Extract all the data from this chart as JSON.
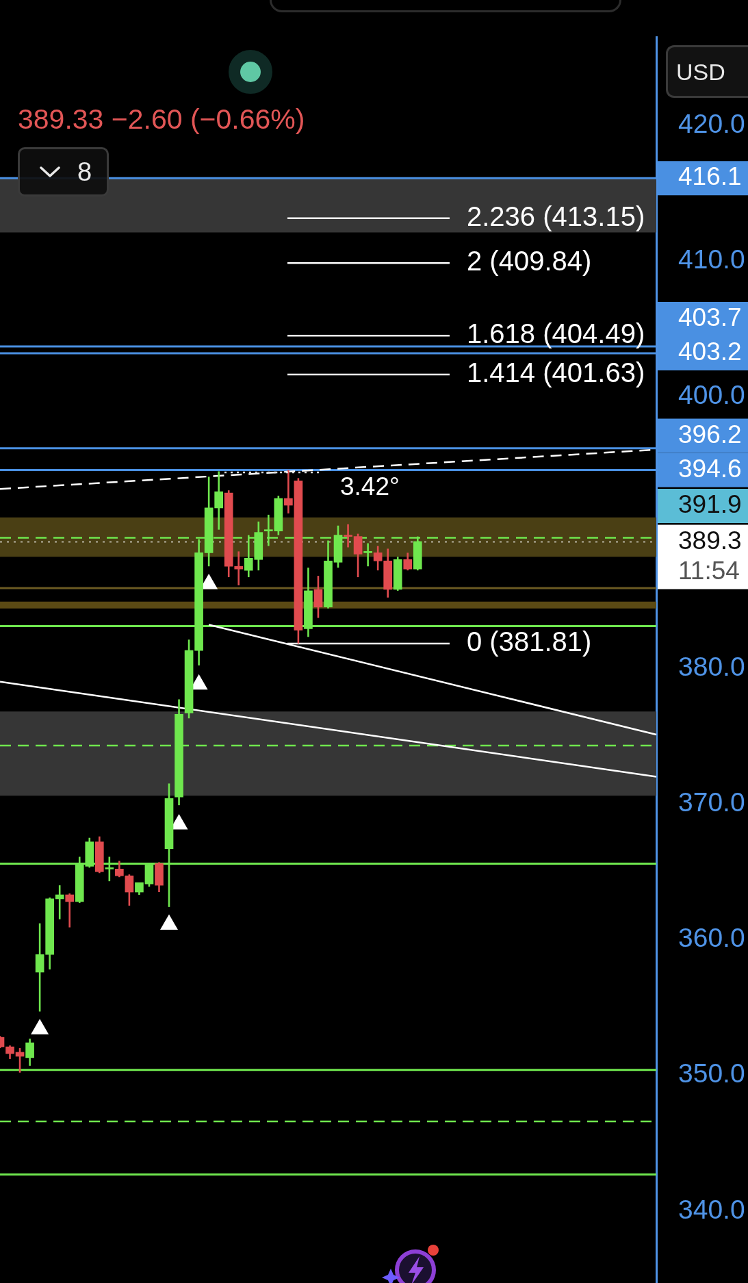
{
  "chart_data": {
    "type": "candlestick",
    "subtitle": "389.33 −2.60 (−0.66%)",
    "categories": [
      null,
      null,
      null,
      null,
      null,
      null,
      null,
      null,
      null,
      null,
      null,
      null,
      null,
      null,
      null,
      null,
      null,
      null,
      null,
      null,
      null,
      null,
      null,
      null,
      null,
      null,
      null,
      null,
      null,
      null,
      null,
      null,
      null,
      null,
      null,
      null,
      null,
      null,
      null,
      null,
      null,
      null,
      null,
      null,
      null,
      null,
      null,
      null,
      null,
      null,
      null,
      null,
      null,
      null,
      null,
      null,
      null,
      null,
      null,
      null,
      null,
      null,
      null,
      null,
      null,
      null,
      null
    ],
    "ohlc": [
      [
        352.8,
        352.9,
        352.0,
        352.1
      ],
      [
        352.1,
        352.2,
        351.2,
        351.6
      ],
      [
        351.7,
        352.0,
        350.2,
        351.4
      ],
      [
        351.3,
        352.7,
        350.7,
        352.4
      ],
      [
        357.6,
        361.2,
        354.7,
        358.9
      ],
      [
        358.9,
        363.1,
        357.8,
        363.0
      ],
      [
        363.0,
        364.0,
        361.5,
        363.3
      ],
      [
        363.3,
        363.4,
        360.9,
        362.8
      ],
      [
        362.8,
        366.1,
        362.7,
        365.6
      ],
      [
        365.4,
        367.5,
        365.3,
        367.2
      ],
      [
        367.2,
        367.6,
        364.9,
        365.0
      ],
      [
        365.2,
        366.1,
        364.3,
        365.3
      ],
      [
        365.2,
        365.8,
        364.6,
        364.7
      ],
      [
        364.7,
        364.8,
        362.5,
        363.5
      ],
      [
        363.5,
        364.2,
        363.3,
        364.2
      ],
      [
        364.1,
        365.6,
        363.9,
        365.5
      ],
      [
        365.6,
        365.7,
        363.5,
        364.0
      ],
      [
        366.7,
        371.5,
        362.4,
        370.4
      ],
      [
        370.5,
        377.7,
        369.9,
        376.6
      ],
      [
        376.7,
        382.1,
        376.3,
        381.3
      ],
      [
        381.3,
        389.5,
        380.2,
        388.5
      ],
      [
        388.5,
        394.1,
        387.5,
        391.8
      ],
      [
        391.8,
        394.5,
        390.2,
        393.0
      ],
      [
        392.9,
        393.1,
        386.7,
        387.5
      ],
      [
        387.5,
        388.6,
        386.1,
        387.3
      ],
      [
        387.2,
        389.8,
        386.7,
        388.1
      ],
      [
        388.0,
        390.8,
        387.2,
        390.0
      ],
      [
        390.1,
        391.3,
        389.0,
        390.2
      ],
      [
        390.1,
        392.7,
        389.8,
        392.5
      ],
      [
        392.5,
        394.6,
        391.4,
        392.0
      ],
      [
        393.8,
        394.0,
        381.81,
        382.8
      ],
      [
        382.9,
        387.4,
        382.3,
        385.7
      ],
      [
        385.8,
        386.8,
        383.7,
        384.5
      ],
      [
        384.5,
        389.4,
        384.4,
        387.9
      ],
      [
        387.8,
        390.5,
        387.4,
        389.8
      ],
      [
        389.8,
        390.6,
        388.9,
        389.7
      ],
      [
        389.7,
        389.9,
        386.7,
        388.4
      ],
      [
        388.5,
        389.2,
        387.5,
        388.6
      ],
      [
        388.5,
        389.0,
        387.2,
        387.9
      ],
      [
        387.9,
        388.8,
        385.2,
        385.8
      ],
      [
        385.8,
        388.2,
        385.7,
        388.0
      ],
      [
        388.0,
        388.5,
        387.2,
        387.3
      ],
      [
        387.3,
        389.7,
        387.2,
        389.33
      ],
      null,
      null,
      null,
      null,
      null,
      null,
      null,
      null,
      null,
      null,
      null,
      null,
      null,
      null,
      null,
      null,
      null,
      null,
      null,
      null,
      null,
      null,
      null,
      null
    ],
    "colors": [
      "#e14b4f",
      "#e14b4f",
      "#e14b4f",
      "#6fe74e",
      "#6fe74e",
      "#6fe74e",
      "#6fe74e",
      "#e14b4f",
      "#6fe74e",
      "#6fe74e",
      "#e14b4f",
      "#6fe74e",
      "#e14b4f",
      "#e14b4f",
      "#6fe74e",
      "#6fe74e",
      "#e14b4f",
      "#6fe74e",
      "#6fe74e",
      "#6fe74e",
      "#6fe74e",
      "#6fe74e",
      "#6fe74e",
      "#e14b4f",
      "#e14b4f",
      "#6fe74e",
      "#6fe74e",
      "#6fe74e",
      "#6fe74e",
      "#e14b4f",
      "#e14b4f",
      "#6fe74e",
      "#e14b4f",
      "#6fe74e",
      "#6fe74e",
      "#e14b4f",
      "#e14b4f",
      "#6fe74e",
      "#e14b4f",
      "#e14b4f",
      "#6fe74e",
      "#e14b4f",
      "#6fe74e",
      null,
      null,
      null,
      null,
      null,
      null,
      null,
      null,
      null,
      null,
      null,
      null,
      null,
      null,
      null,
      null,
      null,
      null,
      null,
      null,
      null,
      null,
      null,
      null
    ],
    "series": [
      {
        "type": "line",
        "line_style": "dashed",
        "color": "#ffffff",
        "values": [
          393.2,
          null,
          null,
          null,
          null,
          null,
          null,
          null,
          null,
          null,
          null,
          null,
          null,
          null,
          null,
          null,
          null,
          null,
          null,
          null,
          null,
          null,
          null,
          null,
          null,
          null,
          null,
          null,
          null,
          null,
          null,
          null,
          null,
          null,
          null,
          null,
          null,
          null,
          null,
          null,
          null,
          null,
          null,
          null,
          null,
          null,
          null,
          null,
          null,
          null,
          null,
          null,
          null,
          null,
          null,
          null,
          null,
          null,
          null,
          null,
          null,
          null,
          null,
          null,
          null,
          null,
          396.1
        ]
      },
      {
        "type": "line",
        "color": "#ffffff",
        "values": [
          379.0,
          null,
          null,
          null,
          null,
          null,
          null,
          null,
          null,
          null,
          null,
          null,
          null,
          null,
          null,
          null,
          null,
          null,
          null,
          null,
          null,
          null,
          null,
          null,
          null,
          null,
          null,
          null,
          null,
          null,
          null,
          null,
          null,
          null,
          null,
          null,
          null,
          null,
          null,
          null,
          null,
          null,
          null,
          null,
          null,
          null,
          null,
          null,
          null,
          null,
          null,
          null,
          null,
          null,
          null,
          null,
          null,
          null,
          null,
          null,
          null,
          null,
          null,
          null,
          null,
          null,
          372.0
        ]
      },
      {
        "type": "line",
        "color": "#ffffff",
        "values": [
          null,
          null,
          null,
          null,
          null,
          null,
          null,
          null,
          null,
          null,
          null,
          null,
          null,
          null,
          null,
          null,
          null,
          null,
          null,
          null,
          null,
          383.2,
          null,
          null,
          null,
          null,
          null,
          null,
          null,
          null,
          null,
          null,
          null,
          null,
          null,
          null,
          null,
          null,
          null,
          null,
          null,
          null,
          null,
          null,
          null,
          null,
          null,
          null,
          null,
          null,
          null,
          null,
          null,
          null,
          null,
          null,
          null,
          null,
          null,
          null,
          null,
          null,
          null,
          null,
          null,
          null,
          375.1
        ]
      },
      {
        "type": "scatter",
        "marker": "triangle",
        "color": "#ffffff",
        "values": [
          null,
          null,
          null,
          null,
          353.4,
          null,
          null,
          null,
          null,
          null,
          null,
          null,
          null,
          null,
          null,
          null,
          null,
          361.1,
          368.5,
          null,
          378.8,
          386.2,
          null,
          null,
          null,
          null,
          null,
          null,
          null,
          null,
          null,
          null,
          null,
          null,
          null,
          null,
          null,
          null,
          null,
          null,
          null,
          null,
          null,
          null,
          null,
          null,
          null,
          null,
          null,
          null,
          null,
          null,
          null,
          null,
          null,
          null,
          null,
          null,
          null,
          null,
          null,
          null,
          null,
          null,
          null,
          null,
          null
        ]
      }
    ],
    "ylim": [
      334.7,
      426.5
    ],
    "yticks": [
      {
        "value": 340,
        "label": "340.0"
      },
      {
        "value": 350,
        "label": "350.0"
      },
      {
        "value": 360,
        "label": "360.0"
      },
      {
        "value": 370,
        "label": "370.0"
      },
      {
        "value": 380,
        "label": "380.0"
      },
      {
        "value": 400,
        "label": "400.0"
      },
      {
        "value": 410,
        "label": "410.0"
      },
      {
        "value": 420,
        "label": "420.0"
      }
    ],
    "tick_labels": "y",
    "ref_lines": [
      {
        "axis": "y",
        "value": 416.1,
        "label": "416.1",
        "color": "#4a90e2"
      },
      {
        "axis": "y",
        "value": 403.7,
        "label": "403.7",
        "color": "#4a90e2"
      },
      {
        "axis": "y",
        "value": 403.2,
        "label": "403.2",
        "color": "#4a90e2"
      },
      {
        "axis": "y",
        "value": 396.2,
        "label": "396.2",
        "color": "#4a90e2"
      },
      {
        "axis": "y",
        "value": 394.6,
        "label": "394.6",
        "color": "#4a90e2"
      },
      {
        "axis": "y",
        "value": 389.3,
        "label": "389.3",
        "color": "#ffffff",
        "line_style": "dotted"
      },
      {
        "axis": "y",
        "value": 413.15,
        "label": "2.236 (413.15)",
        "color": "#ffffff"
      },
      {
        "axis": "y",
        "value": 409.84,
        "label": "2 (409.84)",
        "color": "#ffffff"
      },
      {
        "axis": "y",
        "value": 404.49,
        "label": "1.618 (404.49)",
        "color": "#ffffff"
      },
      {
        "axis": "y",
        "value": 401.63,
        "label": "1.414 (401.63)",
        "color": "#ffffff"
      },
      {
        "axis": "y",
        "value": 381.81,
        "label": "0 (381.81)",
        "color": "#ffffff"
      },
      {
        "axis": "y",
        "value": 389.6,
        "color": "#6fe74e",
        "line_style": "dashed"
      },
      {
        "axis": "y",
        "value": 385.9,
        "color": "#6b5a22"
      },
      {
        "axis": "y",
        "value": 383.1,
        "color": "#6fe74e"
      },
      {
        "axis": "y",
        "value": 374.3,
        "color": "#6fe74e",
        "line_style": "dashed"
      },
      {
        "axis": "y",
        "value": 365.6,
        "color": "#6fe74e"
      },
      {
        "axis": "y",
        "value": 350.4,
        "color": "#6fe74e"
      },
      {
        "axis": "y",
        "value": 346.6,
        "color": "#6fe74e",
        "line_style": "dashed"
      },
      {
        "axis": "y",
        "value": 342.7,
        "color": "#6fe74e"
      }
    ],
    "bands": [
      {
        "axis": "y",
        "from": 412.1,
        "to": 416.1,
        "color": "#363636"
      },
      {
        "axis": "y",
        "from": 388.2,
        "to": 391.1,
        "color": "#4a3f14"
      },
      {
        "axis": "y",
        "from": 384.4,
        "to": 384.9,
        "color": "#5b4a14"
      },
      {
        "axis": "y",
        "from": 370.6,
        "to": 376.8,
        "color": "#363636"
      }
    ],
    "annotations": [
      "USD",
      "8",
      "3.42°",
      "391.9",
      "11:54"
    ]
  }
}
